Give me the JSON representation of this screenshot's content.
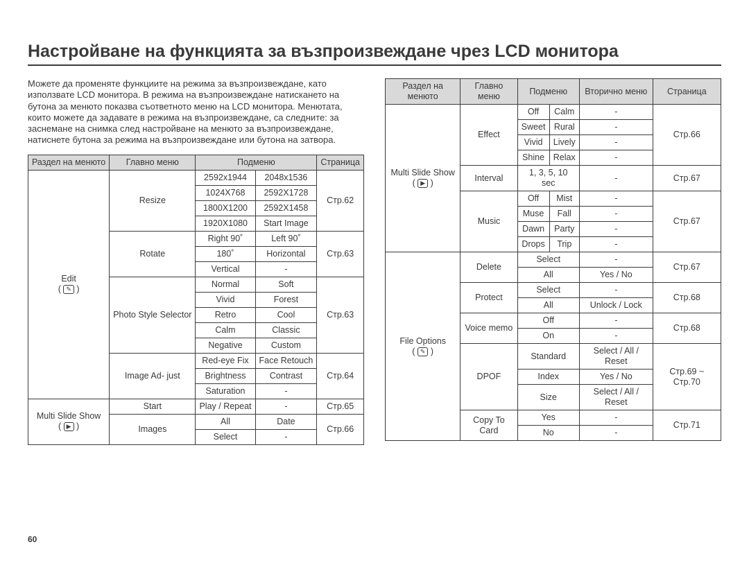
{
  "title": "Настройване на функцията за възпроизвеждане чрез LCD монитора",
  "intro": "Можете да променяте функциите на режима за възпроизвеждане, като използвате LCD монитора. В режима на възпроизвеждане натискането на бутона за менюто показва съответното меню на LCD монитора. Менютата, които можете да задавате в режима на възпроизвеждане, са следните: за заснемане на снимка след настройване на менюто за възпроизвеждане, натиснете бутона за режима на възпроизвеждане или бутона на затвора.",
  "head": {
    "section": "Раздел на менюто",
    "main": "Главно меню",
    "sub": "Подменю",
    "sec": "Вторично меню",
    "page": "Страница"
  },
  "left": {
    "edit_label": "Edit",
    "edit_icon": "✎",
    "mss_label": "Multi Slide Show",
    "play_icon": "▶",
    "resize": {
      "name": "Resize",
      "r1a": "2592x1944",
      "r1b": "2048x1536",
      "r2a": "1024X768",
      "r2b": "2592X1728",
      "r3a": "1800X1200",
      "r3b": "2592X1458",
      "r4a": "1920X1080",
      "r4b": "Start Image",
      "page": "Стр.62"
    },
    "rotate": {
      "name": "Rotate",
      "r1a": "Right 90˚",
      "r1b": "Left 90˚",
      "r2a": "180˚",
      "r2b": "Horizontal",
      "r3a": "Vertical",
      "r3b": "-",
      "page": "Стр.63"
    },
    "pss": {
      "name": "Photo Style Selector",
      "r1a": "Normal",
      "r1b": "Soft",
      "r2a": "Vivid",
      "r2b": "Forest",
      "r3a": "Retro",
      "r3b": "Cool",
      "r4a": "Calm",
      "r4b": "Classic",
      "r5a": "Negative",
      "r5b": "Custom",
      "page": "Стр.63"
    },
    "imgadj": {
      "name": "Image Ad-\njust",
      "r1a": "Red-eye Fix",
      "r1b": "Face Retouch",
      "r2a": "Brightness",
      "r2b": "Contrast",
      "r3a": "Saturation",
      "r3b": "-",
      "page": "Стр.64"
    },
    "start": {
      "name": "Start",
      "r1a": "Play / Repeat",
      "r1b": "-",
      "page": "Стр.65"
    },
    "images": {
      "name": "Images",
      "r1a": "All",
      "r1b": "Date",
      "r2a": "Select",
      "r2b": "-",
      "page": "Стр.66"
    }
  },
  "right": {
    "mss_label": "Multi Slide Show",
    "play_icon": "▶",
    "file_label": "File Options",
    "file_icon": "✎",
    "effect": {
      "name": "Effect",
      "r1a": "Off",
      "r1b": "Calm",
      "r1c": "-",
      "r2a": "Sweet",
      "r2b": "Rural",
      "r2c": "-",
      "r3a": "Vivid",
      "r3b": "Lively",
      "r3c": "-",
      "r4a": "Shine",
      "r4b": "Relax",
      "r4c": "-",
      "page": "Стр.66"
    },
    "interval": {
      "name": "Interval",
      "val": "1, 3, 5, 10 sec",
      "sec": "-",
      "page": "Стр.67"
    },
    "music": {
      "name": "Music",
      "r1a": "Off",
      "r1b": "Mist",
      "r1c": "-",
      "r2a": "Muse",
      "r2b": "Fall",
      "r2c": "-",
      "r3a": "Dawn",
      "r3b": "Party",
      "r3c": "-",
      "r4a": "Drops",
      "r4b": "Trip",
      "r4c": "-",
      "page": "Стр.67"
    },
    "delete": {
      "name": "Delete",
      "r1a": "Select",
      "r1b": "-",
      "r2a": "All",
      "r2b": "Yes / No",
      "page": "Стр.67"
    },
    "protect": {
      "name": "Protect",
      "r1a": "Select",
      "r1b": "-",
      "r2a": "All",
      "r2b": "Unlock / Lock",
      "page": "Стр.68"
    },
    "vmemo": {
      "name": "Voice memo",
      "r1a": "Off",
      "r1b": "-",
      "r2a": "On",
      "r2b": "-",
      "page": "Стр.68"
    },
    "dpof": {
      "name": "DPOF",
      "r1a": "Standard",
      "r1b": "Select / All / Reset",
      "r2a": "Index",
      "r2b": "Yes / No",
      "r3a": "Size",
      "r3b": "Select / All / Reset",
      "page": "Стр.69 ~ Стр.70"
    },
    "copy": {
      "name": "Copy To Card",
      "r1a": "Yes",
      "r1b": "-",
      "r2a": "No",
      "r2b": "-",
      "page": "Стр.71"
    }
  },
  "pageNumber": "60"
}
